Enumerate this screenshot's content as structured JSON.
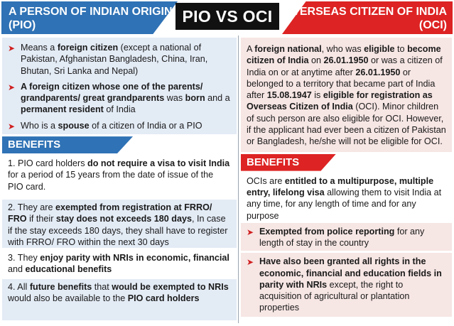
{
  "header": {
    "left_title": "A PERSON OF INDIAN ORIGIN (PIO)",
    "center_title": "PIO VS OCI",
    "right_title": "OVERSEAS CITIZEN OF INDIA (OCI)"
  },
  "pio": {
    "definitions": [
      [
        "Means a ",
        "foreign citizen",
        " (except a national of Pakistan, Afghanistan Bangladesh, China, Iran, Bhutan, Sri Lanka and Nepal)"
      ],
      [
        "",
        "A foreign citizen whose one of the parents/ grandparents/ great grandparents",
        " was ",
        "born",
        " and a ",
        "permanent resident",
        " of India"
      ],
      [
        "Who is a ",
        "spouse",
        " of a citizen of India or a PIO"
      ]
    ],
    "benefits_title": "BENEFITS",
    "benefits": [
      [
        "1. PIO card holders ",
        "do not require a visa to visit India",
        " for a period of 15 years from the date of issue of the PIO card."
      ],
      [
        "2. They are ",
        "exempted from registration at FRRO/ FRO",
        " if their ",
        "stay does not exceeds 180 days",
        ", In case if the stay exceeds 180 days, they shall have to register with FRRO/ FRO within the next 30 days"
      ],
      [
        "3. They ",
        "enjoy parity with NRIs in economic, financial",
        " and ",
        "educational benefits",
        ""
      ],
      [
        "4. All ",
        "future benefits",
        " that ",
        "would be exempted to NRIs",
        " would also be available to the ",
        "PIO card holders",
        ""
      ]
    ]
  },
  "oci": {
    "definition": [
      "A ",
      "foreign national",
      ", who was ",
      "eligible",
      " to ",
      "become citizen of India",
      " on ",
      "26.01.1950",
      " or was a citizen of India on or at anytime after ",
      "26.01.1950",
      " or belonged to a territory that became part of India after ",
      "15.08.1947",
      " is ",
      "eligible for registration as Overseas Citizen of India",
      " (OCI). Minor children of such person are also eligible for OCI. However, if the applicant had ever been a citizen of Pakistan or Bangladesh, he/she will not be eligible for OCI."
    ],
    "benefits_title": "BENEFITS",
    "benefits_intro": [
      "OCIs are ",
      "entitled to a multipurpose, multiple entry, lifelong visa",
      " allowing them to visit India at any time, for any length of time and for any purpose"
    ],
    "benefits": [
      [
        "",
        "Exempted from police reporting",
        " for any length of stay in the country"
      ],
      [
        "",
        "Have also been granted all rights in the economic, financial and education fields in parity with NRIs",
        " except, the right to acquisition of agricultural or plantation properties"
      ]
    ]
  },
  "colors": {
    "pio_blue": "#2f72b5",
    "oci_red": "#dd2323",
    "pio_bg": "#e3ebf5",
    "oci_bg": "#f6e6e4"
  },
  "icons": {
    "bullet": "red-arrow-icon"
  }
}
